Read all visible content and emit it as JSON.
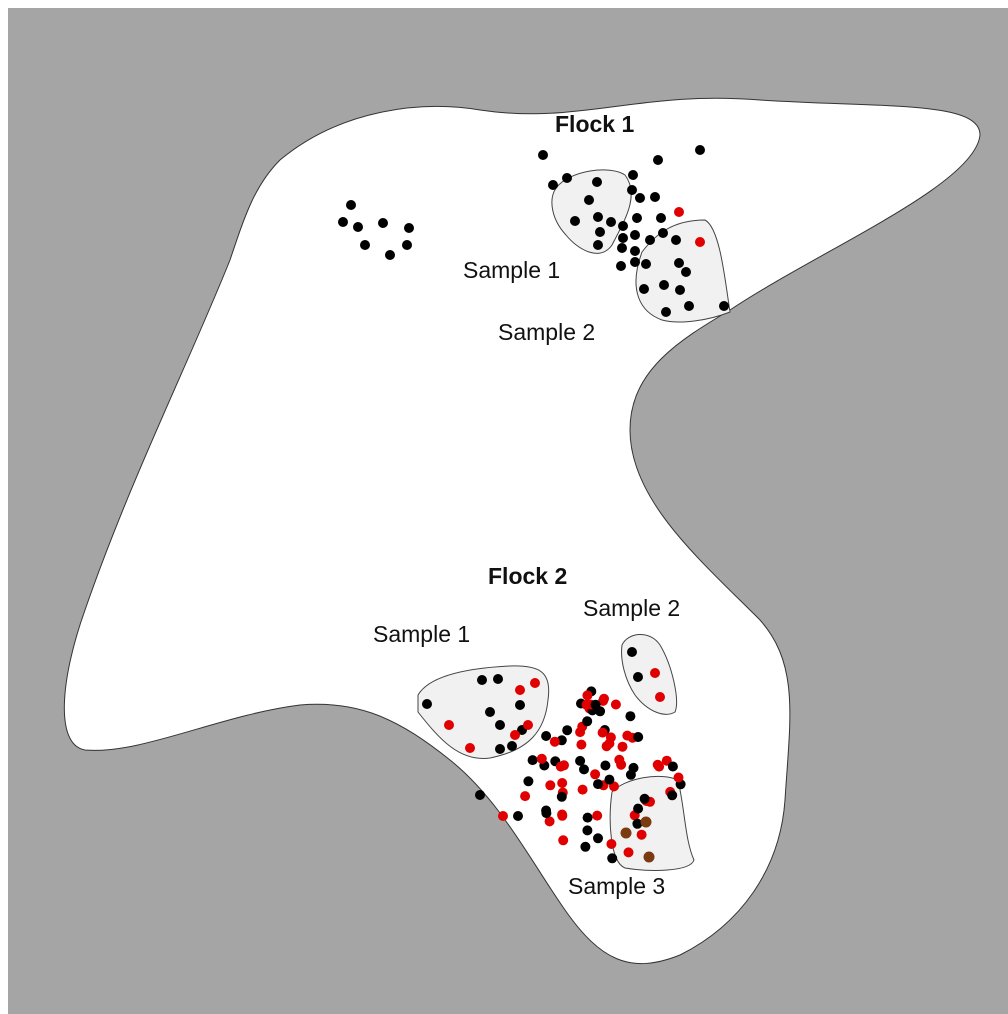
{
  "flocks": [
    {
      "label": "Flock 1",
      "samples": [
        "Sample 1",
        "Sample 2"
      ]
    },
    {
      "label": "Flock 2",
      "samples": [
        "Sample 1",
        "Sample 2",
        "Sample 3"
      ]
    }
  ]
}
